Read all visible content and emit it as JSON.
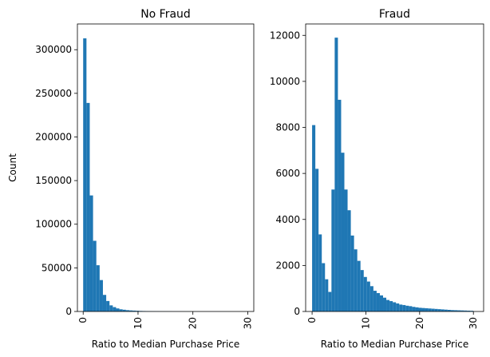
{
  "chart_data": [
    {
      "type": "histogram",
      "title": "No Fraud",
      "x_label": "Ratio to Median Purchase Price",
      "y_label": "Count",
      "color": "#1f77b4",
      "bins": [
        0,
        0.6,
        1.2,
        1.8,
        2.4,
        3,
        3.6,
        4.2,
        4.8,
        5.4,
        6,
        6.6,
        7.2,
        7.8,
        8.4,
        9,
        9.6,
        10.2,
        10.8,
        11.4,
        12,
        12.6,
        13.2,
        13.8,
        14.4,
        15,
        15.6,
        16.2,
        16.8,
        17.4,
        18,
        18.6,
        19.2,
        19.8,
        20.4,
        21,
        21.6,
        22.2,
        22.8,
        23.4,
        24,
        24.6,
        25.2,
        25.8,
        26.4,
        27,
        27.6,
        28.2,
        28.8,
        29.4,
        30
      ],
      "values": [
        313000,
        239000,
        133000,
        81000,
        53000,
        36000,
        19000,
        12000,
        7000,
        5000,
        3500,
        2500,
        2000,
        1500,
        1200,
        1000,
        800,
        600,
        500,
        400,
        330,
        280,
        240,
        200,
        170,
        150,
        130,
        110,
        95,
        80,
        70,
        60,
        52,
        45,
        40,
        35,
        30,
        26,
        22,
        19,
        16,
        14,
        12,
        10,
        9,
        8,
        7,
        6,
        5,
        4
      ],
      "xlim": [
        -1.05,
        31.1
      ],
      "ylim": [
        0,
        329500
      ],
      "xticks": [
        0,
        10,
        20,
        30
      ],
      "yticks": [
        0,
        50000,
        100000,
        150000,
        200000,
        250000,
        300000
      ]
    },
    {
      "type": "histogram",
      "title": "Fraud",
      "x_label": "Ratio to Median Purchase Price",
      "color": "#1f77b4",
      "bins": [
        0,
        0.6,
        1.2,
        1.8,
        2.4,
        3,
        3.6,
        4.2,
        4.8,
        5.4,
        6,
        6.6,
        7.2,
        7.8,
        8.4,
        9,
        9.6,
        10.2,
        10.8,
        11.4,
        12,
        12.6,
        13.2,
        13.8,
        14.4,
        15,
        15.6,
        16.2,
        16.8,
        17.4,
        18,
        18.6,
        19.2,
        19.8,
        20.4,
        21,
        21.6,
        22.2,
        22.8,
        23.4,
        24,
        24.6,
        25.2,
        25.8,
        26.4,
        27,
        27.6,
        28.2,
        28.8,
        29.4,
        30
      ],
      "values": [
        8100,
        6200,
        3350,
        2100,
        1400,
        850,
        5300,
        11900,
        9200,
        6900,
        5300,
        4400,
        3300,
        2700,
        2200,
        1800,
        1500,
        1300,
        1100,
        900,
        800,
        700,
        600,
        500,
        450,
        400,
        350,
        300,
        280,
        250,
        230,
        200,
        180,
        160,
        150,
        140,
        130,
        120,
        110,
        100,
        90,
        80,
        70,
        60,
        55,
        50,
        45,
        40,
        35,
        30
      ],
      "xlim": [
        -1.2,
        31.9
      ],
      "ylim": [
        0,
        12495
      ],
      "xticks": [
        0,
        10,
        20,
        30
      ],
      "yticks": [
        0,
        2000,
        4000,
        6000,
        8000,
        10000,
        12000
      ]
    }
  ]
}
